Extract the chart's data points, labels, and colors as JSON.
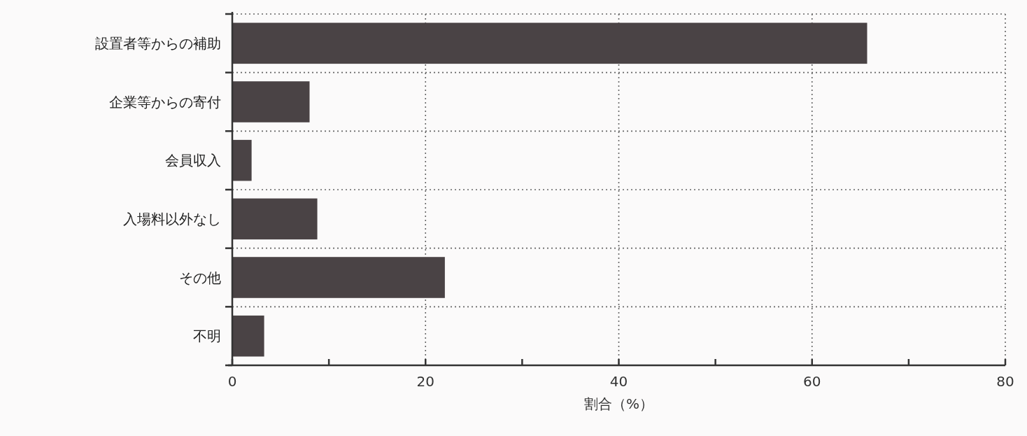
{
  "chart_data": {
    "type": "bar",
    "orientation": "horizontal",
    "xlabel": "割合（%）",
    "categories": [
      "設置者等からの補助",
      "企業等からの寄付",
      "会員収入",
      "入場料以外なし",
      "その他",
      "不明"
    ],
    "values": [
      65.7,
      8.0,
      2.0,
      8.8,
      22.0,
      3.3
    ],
    "color": "#4a4345",
    "xlim": [
      0,
      80
    ],
    "xticks": [
      0,
      {
        "value": 10,
        "label": null
      },
      20,
      {
        "value": 30,
        "label": null
      },
      40,
      {
        "value": 50,
        "label": null
      },
      60,
      {
        "value": 70,
        "label": null
      },
      80
    ],
    "grid": true
  }
}
